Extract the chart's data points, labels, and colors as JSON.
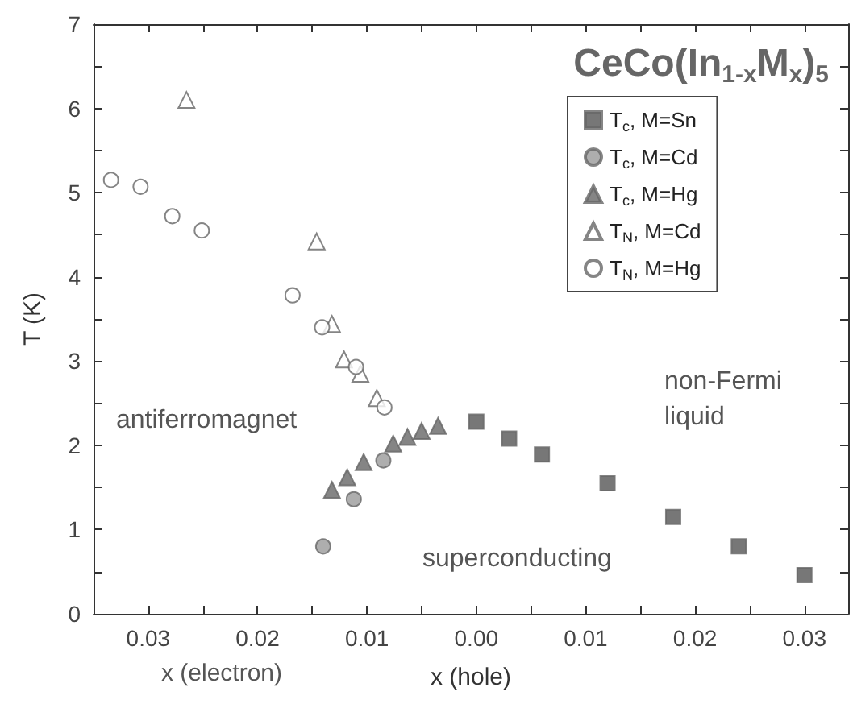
{
  "chart_data": {
    "type": "scatter",
    "title": "CeCo(In$_{1-x}$M$_{x}$)$_{5}$",
    "xlabel": "x (hole)",
    "ylabel": "T (K)",
    "annotations": [
      "antiferromagnet",
      "non-Fermi\nliquid",
      "superconducting",
      "x (electron)"
    ],
    "xlim": [
      -0.035,
      0.034
    ],
    "ylim": [
      0,
      7
    ],
    "xticks": [
      {
        "value": -0.03,
        "label": "0.03"
      },
      {
        "value": -0.025,
        "label": null
      },
      {
        "value": -0.02,
        "label": "0.02"
      },
      {
        "value": -0.015,
        "label": null
      },
      {
        "value": -0.01,
        "label": "0.01"
      },
      {
        "value": -0.005,
        "label": null
      },
      {
        "value": 0,
        "label": "0.00"
      },
      {
        "value": 0.005,
        "label": null
      },
      {
        "value": 0.01,
        "label": "0.01"
      },
      {
        "value": 0.015,
        "label": null
      },
      {
        "value": 0.02,
        "label": "0.02"
      },
      {
        "value": 0.025,
        "label": null
      },
      {
        "value": 0.03,
        "label": "0.03"
      }
    ],
    "yticks": [
      0,
      {
        "value": 0.5,
        "label": null
      },
      1,
      {
        "value": 1.5,
        "label": null
      },
      2,
      {
        "value": 2.5,
        "label": null
      },
      3,
      {
        "value": 3.5,
        "label": null
      },
      4,
      {
        "value": 4.5,
        "label": null
      },
      5,
      {
        "value": 5.5,
        "label": null
      },
      6,
      {
        "value": 6.5,
        "label": null
      },
      7
    ],
    "grid": false,
    "legend": "top right",
    "series": [
      {
        "name": "T$_{c}$, M=Sn",
        "color": "#555555",
        "marker": "square",
        "x": [
          0,
          0.003,
          0.006,
          0.012,
          0.018,
          0.024,
          0.03
        ],
        "values": [
          2.28,
          2.08,
          1.89,
          1.55,
          1.15,
          0.8,
          0.46
        ]
      },
      {
        "name": "T$_{c}$, M=Cd",
        "color": "#9a9a9a",
        "marker": "circle",
        "x": [
          -0.014,
          -0.0112,
          -0.0085
        ],
        "values": [
          0.8,
          1.36,
          1.82
        ]
      },
      {
        "name": "T$_{c}$, M=Hg",
        "color": "#666666",
        "marker": "triangle",
        "x": [
          -0.0132,
          -0.0118,
          -0.0103,
          -0.0076,
          -0.0063,
          -0.005,
          -0.0035
        ],
        "values": [
          1.47,
          1.62,
          1.8,
          2.02,
          2.1,
          2.17,
          2.23
        ]
      },
      {
        "name": "T$_{N}$, M=Cd",
        "color": "#ffffff",
        "marker": "triangle",
        "x": [
          -0.0265,
          -0.0146,
          -0.0132,
          -0.0121,
          -0.0106,
          -0.0091
        ],
        "values": [
          6.1,
          4.42,
          3.44,
          3.02,
          2.85,
          2.56
        ]
      },
      {
        "name": "T$_{N}$, M=Hg",
        "color": "#ffffff",
        "marker": "circle",
        "x": [
          -0.0334,
          -0.0307,
          -0.0278,
          -0.0251,
          -0.0168,
          -0.0141,
          -0.011,
          -0.0084
        ],
        "values": [
          5.15,
          5.07,
          4.72,
          4.55,
          3.78,
          3.4,
          2.93,
          2.45
        ]
      }
    ]
  }
}
